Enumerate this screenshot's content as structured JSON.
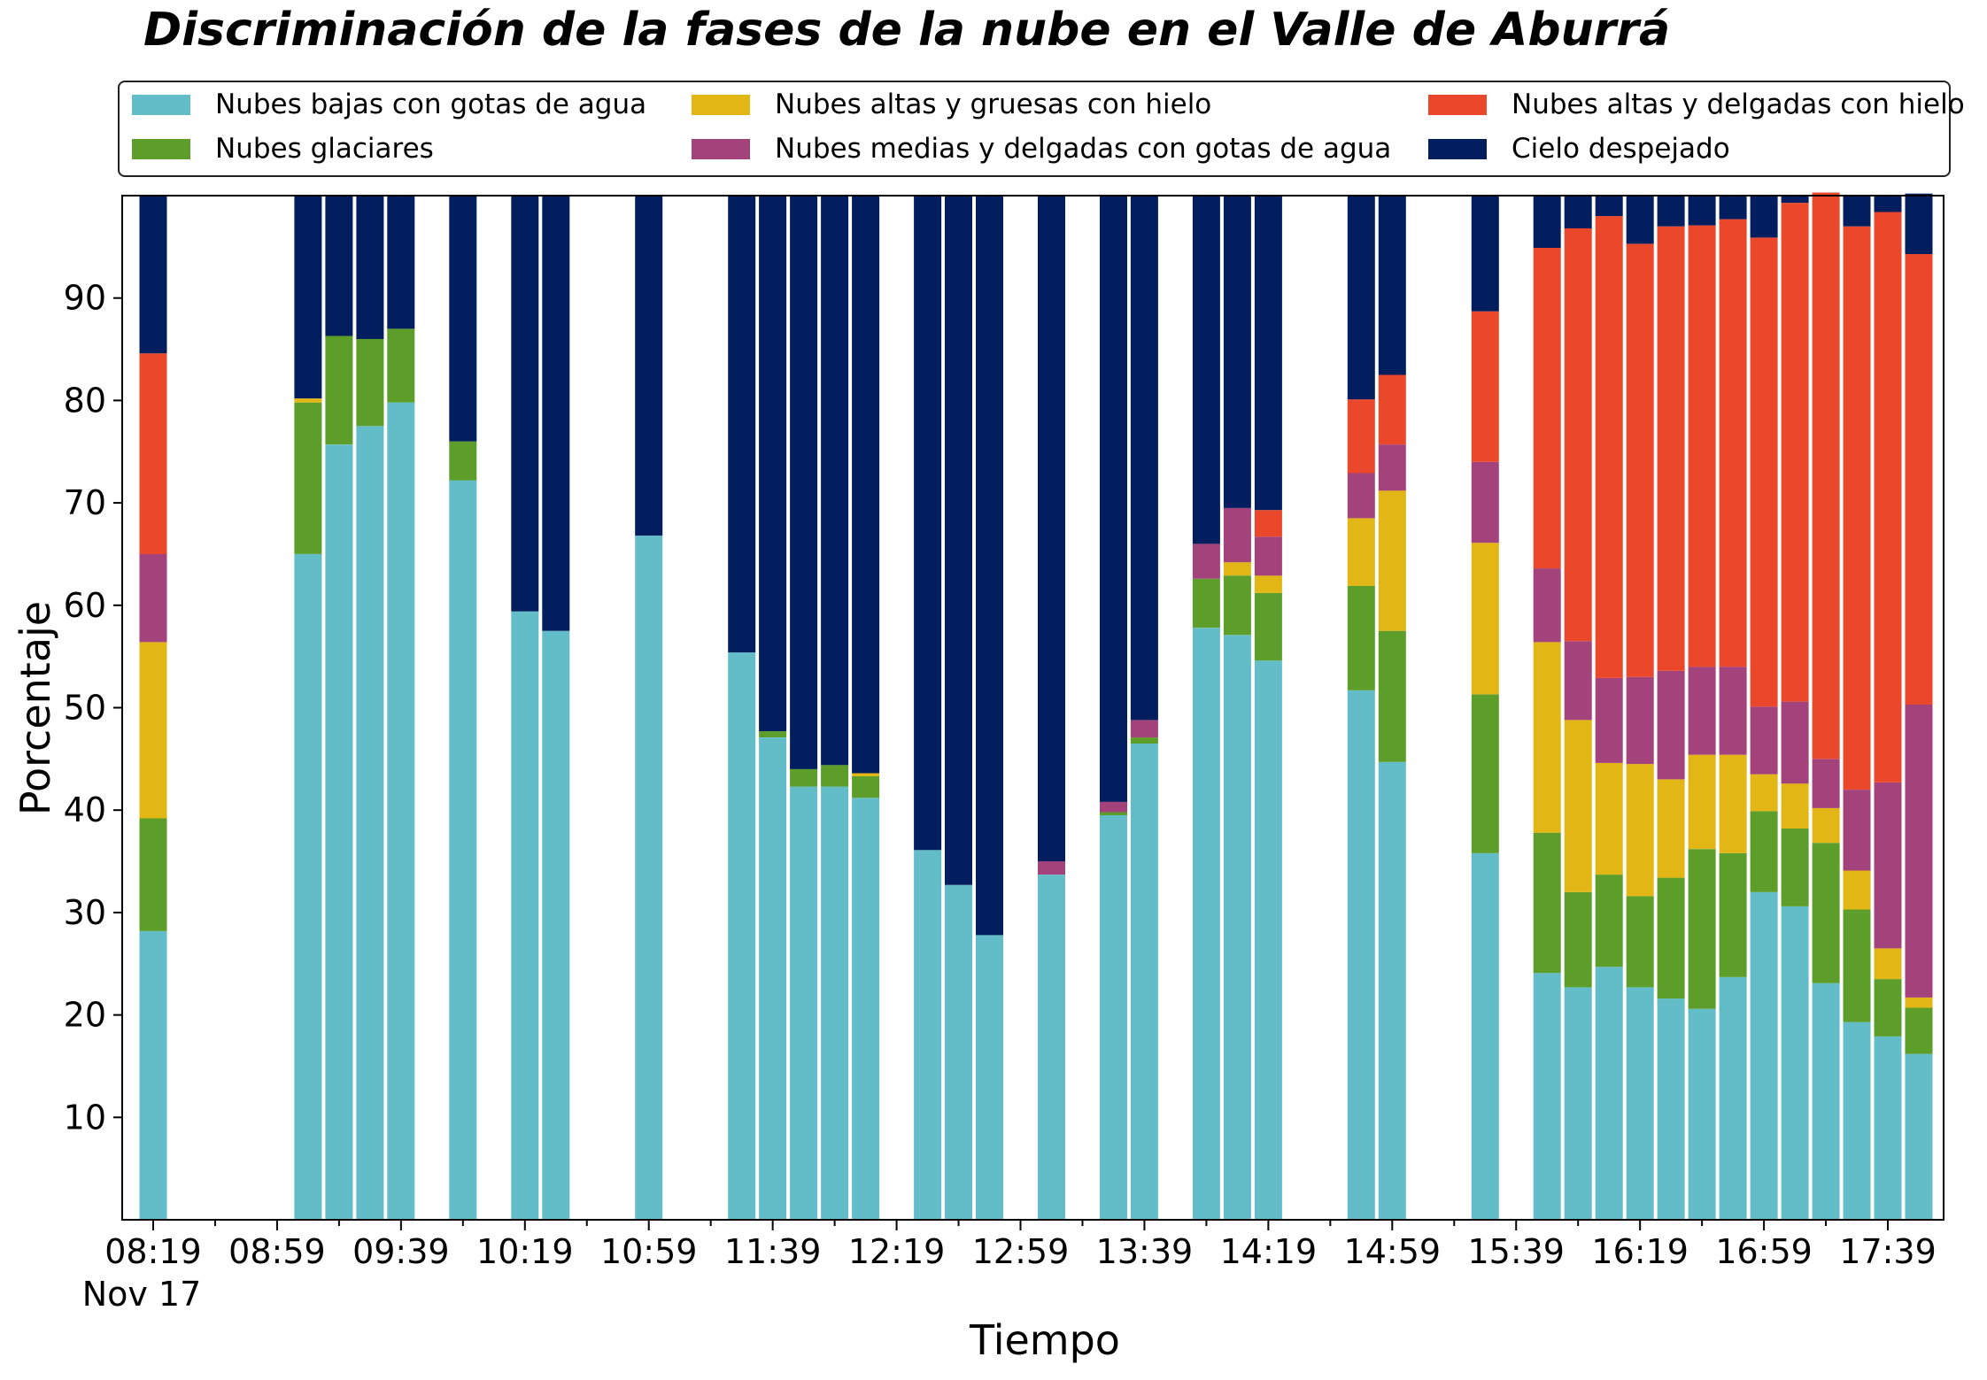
{
  "chart_data": {
    "type": "bar",
    "stacked": true,
    "title": "Discriminación de la fases de la nube en el Valle de Aburrá",
    "xlabel": "Tiempo",
    "ylabel": "Porcentaje",
    "xlim": [
      "08:09",
      "17:57"
    ],
    "ylim": [
      0,
      100
    ],
    "y_ticks": [
      10,
      20,
      30,
      40,
      50,
      60,
      70,
      80,
      90
    ],
    "x_tick_labels": [
      "08:19",
      "08:59",
      "09:39",
      "10:19",
      "10:59",
      "11:39",
      "12:19",
      "12:59",
      "13:39",
      "14:19",
      "14:59",
      "15:39",
      "16:19",
      "16:59",
      "17:39"
    ],
    "x_date_label": "Nov 17",
    "grid": false,
    "legend_position": "top",
    "times": [
      "08:19",
      "09:09",
      "09:19",
      "09:29",
      "09:39",
      "09:59",
      "10:19",
      "10:29",
      "10:59",
      "11:29",
      "11:39",
      "11:49",
      "11:59",
      "12:09",
      "12:29",
      "12:39",
      "12:49",
      "13:09",
      "13:29",
      "13:39",
      "13:59",
      "14:09",
      "14:19",
      "14:49",
      "14:59",
      "15:29",
      "15:49",
      "15:59",
      "16:09",
      "16:19",
      "16:29",
      "16:39",
      "16:49",
      "16:59",
      "17:09",
      "17:19",
      "17:29",
      "17:39",
      "17:49"
    ],
    "series": [
      {
        "name": "Nubes bajas con gotas de agua",
        "color": "#63bdc9",
        "values": [
          28.2,
          65,
          75.7,
          77.5,
          79.8,
          72.2,
          59.4,
          57.5,
          66.8,
          55.4,
          47.1,
          42.3,
          42.3,
          41.2,
          36.1,
          32.7,
          27.8,
          33.7,
          39.5,
          46.5,
          57.8,
          57.1,
          54.6,
          51.7,
          44.7,
          35.8,
          24.1,
          22.7,
          24.7,
          22.7,
          21.6,
          20.6,
          23.7,
          32,
          30.6,
          23.1,
          19.3,
          17.9,
          16.2
        ]
      },
      {
        "name": "Nubes glaciares",
        "color": "#5c9e29",
        "values": [
          11,
          14.8,
          10.6,
          8.5,
          7.2,
          3.8,
          0,
          0,
          0,
          0,
          0.6,
          1.7,
          2.1,
          2.1,
          0,
          0,
          0,
          0,
          0.3,
          0.6,
          4.8,
          5.8,
          6.6,
          10.2,
          12.8,
          15.5,
          13.7,
          9.3,
          9,
          8.9,
          11.8,
          15.6,
          12.1,
          7.9,
          7.6,
          13.7,
          11,
          5.6,
          4.5
        ]
      },
      {
        "name": "Nubes altas y gruesas con hielo",
        "color": "#e2b615",
        "values": [
          17.2,
          0.4,
          0,
          0,
          0,
          0,
          0,
          0,
          0,
          0,
          0,
          0,
          0,
          0.3,
          0,
          0,
          0,
          0,
          0,
          0,
          0,
          1.3,
          1.7,
          6.6,
          13.7,
          14.8,
          18.6,
          16.8,
          10.9,
          12.9,
          9.6,
          9.2,
          9.6,
          3.6,
          4.4,
          3.4,
          3.8,
          3,
          1
        ]
      },
      {
        "name": "Nubes medias y delgadas con gotas de agua",
        "color": "#a3427b",
        "values": [
          8.6,
          0,
          0,
          0,
          0,
          0,
          0,
          0,
          0,
          0,
          0,
          0,
          0,
          0,
          0,
          0,
          0,
          1.3,
          1,
          1.7,
          3.4,
          5.3,
          3.8,
          4.4,
          4.5,
          7.9,
          7.2,
          7.7,
          8.3,
          8.5,
          10.6,
          8.6,
          8.6,
          6.6,
          8,
          4.8,
          7.9,
          16.2,
          28.6
        ]
      },
      {
        "name": "Nubes altas y delgadas con hielo",
        "color": "#eb472a",
        "values": [
          19.6,
          0,
          0,
          0,
          0,
          0,
          0,
          0,
          0,
          0,
          0,
          0,
          0,
          0,
          0,
          0,
          0,
          0,
          0,
          0,
          0,
          0,
          2.6,
          7.2,
          6.8,
          14.7,
          31.3,
          40.3,
          45.1,
          42.3,
          43.4,
          43.1,
          43.7,
          45.8,
          48.7,
          55.3,
          55,
          55.7,
          44
        ]
      },
      {
        "name": "Cielo despejado",
        "color": "#031e5e",
        "values": [
          15.4,
          19.8,
          13.7,
          14,
          13,
          24,
          40.6,
          42.5,
          33.2,
          44.6,
          52.3,
          56,
          55.6,
          56.4,
          63.9,
          67.3,
          72.2,
          65,
          59.2,
          51.2,
          34,
          30.5,
          30.7,
          19.9,
          17.5,
          11.3,
          5.1,
          3.2,
          2,
          4.7,
          3,
          2.9,
          2.3,
          4.1,
          0.7,
          -0.3,
          3,
          1.6,
          5.9
        ]
      }
    ]
  }
}
